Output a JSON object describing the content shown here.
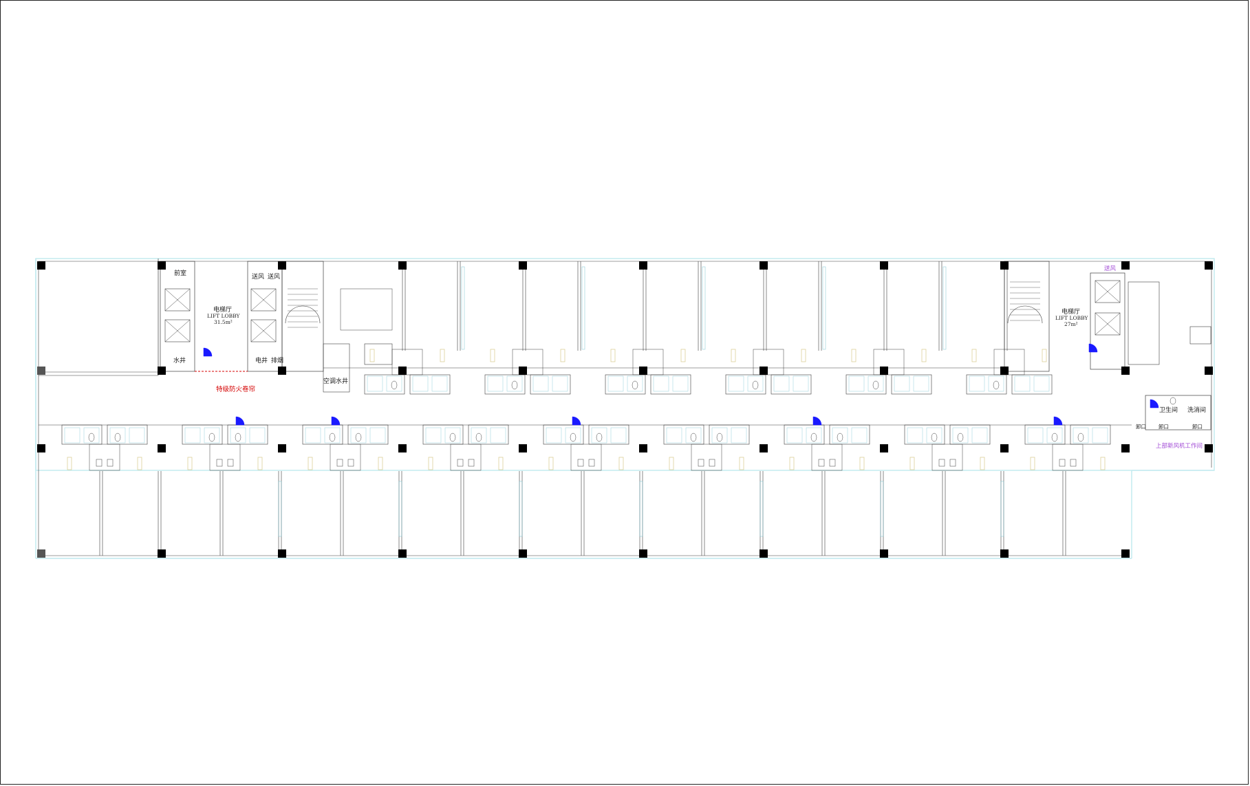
{
  "labels": {
    "stair_a": "前室",
    "lift_lobby_a_cn": "电梯厅",
    "lift_lobby_a_en": "LIFT LOBBY",
    "lift_lobby_a_area": "31.5m²",
    "supply_air_1": "送风",
    "supply_air_2": "送风",
    "water_shaft": "水井",
    "electric_shaft": "电井",
    "exhaust_shaft": "排烟",
    "fire_shutter": "特级防火卷帘",
    "ac_water_shaft": "空调水井",
    "lift_lobby_b_cn": "电梯厅",
    "lift_lobby_b_en": "LIFT LOBBY",
    "lift_lobby_b_area": "27m²",
    "supply_air_3": "送风",
    "restroom": "卫生间",
    "laundry": "洗消间",
    "restroom_door_1": "卸口",
    "restroom_door_2": "卸口",
    "restroom_door_3": "卸口",
    "fresh_air_room": "上部新风机工作间"
  },
  "colors": {
    "wall": "#bfe9ee",
    "line": "#3a3a3a",
    "column": "#000000",
    "door_arc": "#1a1aff",
    "fixture": "#d8c98a",
    "warning": "#d40000",
    "note": "#a24bd6"
  },
  "icons": [
    "column-icon",
    "door-swing-icon",
    "elevator-car-icon",
    "stair-icon",
    "toilet-icon",
    "sink-icon"
  ]
}
